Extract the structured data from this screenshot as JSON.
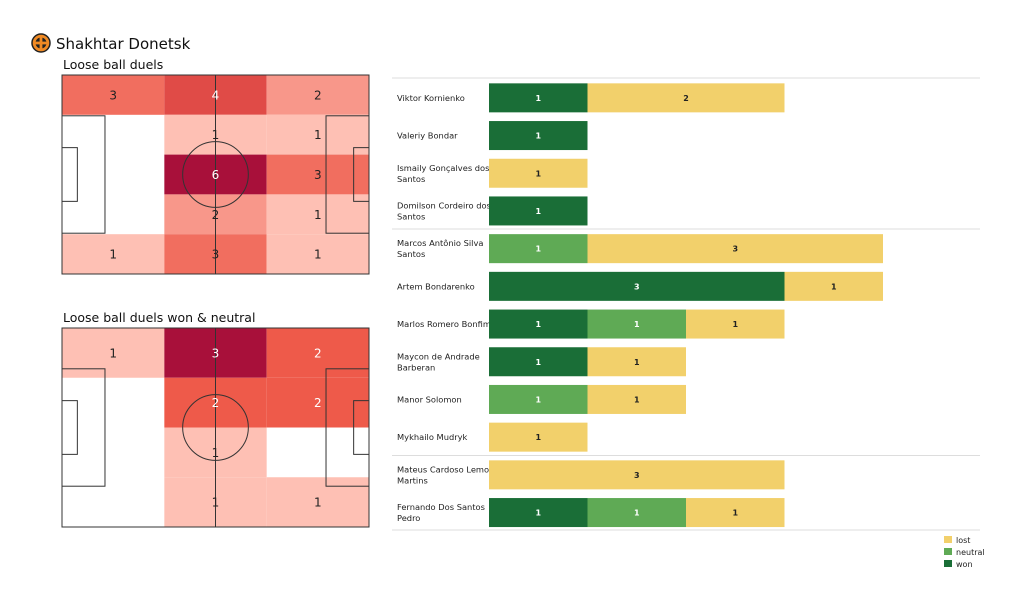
{
  "team": {
    "name": "Shakhtar Donetsk",
    "logo_icon": "club-crest-icon"
  },
  "colors": {
    "won": "#1a6e37",
    "neutral": "#5faa55",
    "lost": "#f2d06b",
    "heat_low": "#fec0b4",
    "heat_high": "#a8103a",
    "pitch_line": "#333333"
  },
  "chart_data": [
    {
      "type": "heatmap",
      "title": "Loose ball duels",
      "max": 6,
      "cells": [
        {
          "row": 0,
          "col": 0,
          "value": 3
        },
        {
          "row": 0,
          "col": 1,
          "value": 4
        },
        {
          "row": 0,
          "col": 2,
          "value": 2
        },
        {
          "row": 1,
          "col": 0,
          "value": 0
        },
        {
          "row": 1,
          "col": 1,
          "value": 1
        },
        {
          "row": 1,
          "col": 2,
          "value": 1
        },
        {
          "row": 2,
          "col": 0,
          "value": 0
        },
        {
          "row": 2,
          "col": 1,
          "value": 6
        },
        {
          "row": 2,
          "col": 2,
          "value": 3
        },
        {
          "row": 3,
          "col": 0,
          "value": 0
        },
        {
          "row": 3,
          "col": 1,
          "value": 2
        },
        {
          "row": 3,
          "col": 2,
          "value": 1
        },
        {
          "row": 4,
          "col": 0,
          "value": 1
        },
        {
          "row": 4,
          "col": 1,
          "value": 3
        },
        {
          "row": 4,
          "col": 2,
          "value": 1
        }
      ]
    },
    {
      "type": "heatmap",
      "title": "Loose ball duels won & neutral",
      "max": 3,
      "cells": [
        {
          "row": 0,
          "col": 0,
          "value": 1
        },
        {
          "row": 0,
          "col": 1,
          "value": 3
        },
        {
          "row": 0,
          "col": 2,
          "value": 2
        },
        {
          "row": 1,
          "col": 0,
          "value": 0
        },
        {
          "row": 1,
          "col": 1,
          "value": 2
        },
        {
          "row": 1,
          "col": 2,
          "value": 2
        },
        {
          "row": 2,
          "col": 0,
          "value": 0
        },
        {
          "row": 2,
          "col": 1,
          "value": 1
        },
        {
          "row": 2,
          "col": 2,
          "value": 0
        },
        {
          "row": 3,
          "col": 0,
          "value": 0
        },
        {
          "row": 3,
          "col": 1,
          "value": 1
        },
        {
          "row": 3,
          "col": 2,
          "value": 1
        }
      ]
    },
    {
      "type": "bar",
      "orientation": "horizontal",
      "stacked": true,
      "categories": [
        "Viktor Kornienko",
        "Valeriy Bondar",
        "Ismaily Gonçalves dos Santos",
        "Domilson Cordeiro dos Santos",
        "Marcos Antônio Silva Santos",
        "Artem Bondarenko",
        "Marlos Romero Bonfim",
        "Maycon de Andrade Barberan",
        "Manor Solomon",
        "Mykhailo Mudryk",
        "Mateus Cardoso Lemos Martins",
        "Fernando Dos Santos Pedro"
      ],
      "label_lines": [
        [
          "Viktor Kornienko"
        ],
        [
          "Valeriy Bondar"
        ],
        [
          "Ismaily Gonçalves dos",
          "Santos"
        ],
        [
          "Domilson Cordeiro dos",
          "Santos"
        ],
        [
          "Marcos Antônio Silva",
          "Santos"
        ],
        [
          "Artem Bondarenko"
        ],
        [
          "Marlos Romero Bonfim"
        ],
        [
          "Maycon de Andrade",
          "Barberan"
        ],
        [
          "Manor Solomon"
        ],
        [
          "Mykhailo Mudryk"
        ],
        [
          "Mateus Cardoso Lemos",
          "Martins"
        ],
        [
          "Fernando Dos Santos",
          "Pedro"
        ]
      ],
      "groups": [
        [
          0,
          1,
          2,
          3
        ],
        [
          4,
          5,
          6,
          7,
          8,
          9
        ],
        [
          10,
          11
        ]
      ],
      "series": [
        {
          "name": "won",
          "values": [
            1,
            1,
            0,
            1,
            0,
            3,
            1,
            1,
            0,
            0,
            0,
            1
          ]
        },
        {
          "name": "neutral",
          "values": [
            0,
            0,
            0,
            0,
            1,
            0,
            1,
            0,
            1,
            0,
            0,
            1
          ]
        },
        {
          "name": "lost",
          "values": [
            2,
            0,
            1,
            0,
            3,
            1,
            1,
            1,
            1,
            1,
            3,
            1
          ]
        }
      ],
      "legend": {
        "placement": "bottom-right",
        "order": [
          "lost",
          "neutral",
          "won"
        ]
      }
    }
  ]
}
